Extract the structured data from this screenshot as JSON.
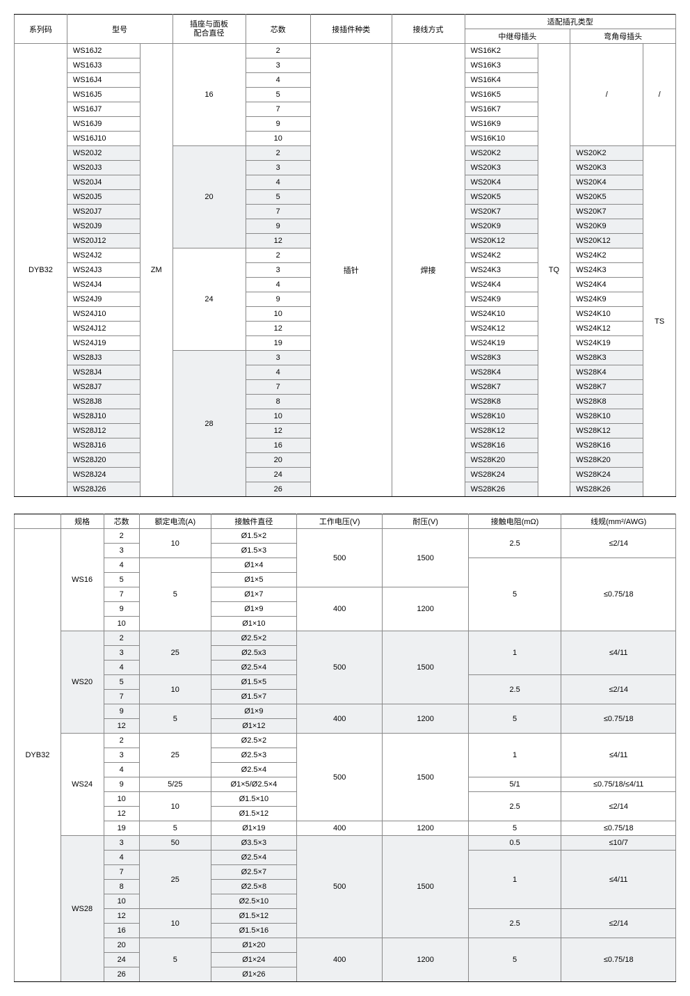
{
  "t1": {
    "headers": {
      "c0": "系列码",
      "c1": "型号",
      "c2": "插座与面板\n配合直径",
      "c3": "芯数",
      "c4": "接插件种类",
      "c5": "接线方式",
      "c6": "适配插孔类型",
      "c6a": "中继母插头",
      "c6b": "弯角母插头"
    },
    "series": "DYB32",
    "zm": "ZM",
    "tq": "TQ",
    "ts": "TS",
    "pin": "插针",
    "weld": "焊接",
    "slash": "/",
    "g16": {
      "d": "16",
      "rows": [
        {
          "m": "WS16J2",
          "c": "2",
          "k": "WS16K2"
        },
        {
          "m": "WS16J3",
          "c": "3",
          "k": "WS16K3"
        },
        {
          "m": "WS16J4",
          "c": "4",
          "k": "WS16K4"
        },
        {
          "m": "WS16J5",
          "c": "5",
          "k": "WS16K5"
        },
        {
          "m": "WS16J7",
          "c": "7",
          "k": "WS16K7"
        },
        {
          "m": "WS16J9",
          "c": "9",
          "k": "WS16K9"
        },
        {
          "m": "WS16J10",
          "c": "10",
          "k": "WS16K10"
        }
      ]
    },
    "g20": {
      "d": "20",
      "rows": [
        {
          "m": "WS20J2",
          "c": "2",
          "k": "WS20K2",
          "b": "WS20K2"
        },
        {
          "m": "WS20J3",
          "c": "3",
          "k": "WS20K3",
          "b": "WS20K3"
        },
        {
          "m": "WS20J4",
          "c": "4",
          "k": "WS20K4",
          "b": "WS20K4"
        },
        {
          "m": "WS20J5",
          "c": "5",
          "k": "WS20K5",
          "b": "WS20K5"
        },
        {
          "m": "WS20J7",
          "c": "7",
          "k": "WS20K7",
          "b": "WS20K7"
        },
        {
          "m": "WS20J9",
          "c": "9",
          "k": "WS20K9",
          "b": "WS20K9"
        },
        {
          "m": "WS20J12",
          "c": "12",
          "k": "WS20K12",
          "b": "WS20K12"
        }
      ]
    },
    "g24": {
      "d": "24",
      "rows": [
        {
          "m": "WS24J2",
          "c": "2",
          "k": "WS24K2",
          "b": "WS24K2"
        },
        {
          "m": "WS24J3",
          "c": "3",
          "k": "WS24K3",
          "b": "WS24K3"
        },
        {
          "m": "WS24J4",
          "c": "4",
          "k": "WS24K4",
          "b": "WS24K4"
        },
        {
          "m": "WS24J9",
          "c": "9",
          "k": "WS24K9",
          "b": "WS24K9"
        },
        {
          "m": "WS24J10",
          "c": "10",
          "k": "WS24K10",
          "b": "WS24K10"
        },
        {
          "m": "WS24J12",
          "c": "12",
          "k": "WS24K12",
          "b": "WS24K12"
        },
        {
          "m": "WS24J19",
          "c": "19",
          "k": "WS24K19",
          "b": "WS24K19"
        }
      ]
    },
    "g28": {
      "d": "28",
      "rows": [
        {
          "m": "WS28J3",
          "c": "3",
          "k": "WS28K3",
          "b": "WS28K3"
        },
        {
          "m": "WS28J4",
          "c": "4",
          "k": "WS28K4",
          "b": "WS28K4"
        },
        {
          "m": "WS28J7",
          "c": "7",
          "k": "WS28K7",
          "b": "WS28K7"
        },
        {
          "m": "WS28J8",
          "c": "8",
          "k": "WS28K8",
          "b": "WS28K8"
        },
        {
          "m": "WS28J10",
          "c": "10",
          "k": "WS28K10",
          "b": "WS28K10"
        },
        {
          "m": "WS28J12",
          "c": "12",
          "k": "WS28K12",
          "b": "WS28K12"
        },
        {
          "m": "WS28J16",
          "c": "16",
          "k": "WS28K16",
          "b": "WS28K16"
        },
        {
          "m": "WS28J20",
          "c": "20",
          "k": "WS28K20",
          "b": "WS28K20"
        },
        {
          "m": "WS28J24",
          "c": "24",
          "k": "WS28K24",
          "b": "WS28K24"
        },
        {
          "m": "WS28J26",
          "c": "26",
          "k": "WS28K26",
          "b": "WS28K26"
        }
      ]
    }
  },
  "t2": {
    "headers": {
      "c0": "",
      "c1": "规格",
      "c2": "芯数",
      "c3": "额定电流(A)",
      "c4": "接触件直径",
      "c5": "工作电压(V)",
      "c6": "耐压(V)",
      "c7": "接触电阻(mΩ)",
      "c8": "线规(mm²/AWG)"
    },
    "series": "DYB32",
    "ws16": {
      "name": "WS16",
      "rows": [
        {
          "c": "2",
          "cur": "10",
          "cd": "Ø1.5×2",
          "wv": "500",
          "tv": "1500",
          "r": "2.5",
          "g": "≤2/14"
        },
        {
          "c": "3",
          "cd": "Ø1.5×3"
        },
        {
          "c": "4",
          "cur": "5",
          "cd": "Ø1×4",
          "r": "5",
          "g": "≤0.75/18"
        },
        {
          "c": "5",
          "cd": "Ø1×5"
        },
        {
          "c": "7",
          "cd": "Ø1×7",
          "wv": "400",
          "tv": "1200"
        },
        {
          "c": "9",
          "cd": "Ø1×9"
        },
        {
          "c": "10",
          "cd": "Ø1×10"
        }
      ]
    },
    "ws20": {
      "name": "WS20",
      "rows": [
        {
          "c": "2",
          "cur": "25",
          "cd": "Ø2.5×2",
          "wv": "500",
          "tv": "1500",
          "r": "1",
          "g": "≤4/11"
        },
        {
          "c": "3",
          "cd": "Ø2.5x3"
        },
        {
          "c": "4",
          "cd": "Ø2.5×4"
        },
        {
          "c": "5",
          "cur": "10",
          "cd": "Ø1.5×5",
          "r": "2.5",
          "g": "≤2/14"
        },
        {
          "c": "7",
          "cd": "Ø1.5×7"
        },
        {
          "c": "9",
          "cur": "5",
          "cd": "Ø1×9",
          "wv": "400",
          "tv": "1200",
          "r": "5",
          "g": "≤0.75/18"
        },
        {
          "c": "12",
          "cd": "Ø1×12"
        }
      ]
    },
    "ws24": {
      "name": "WS24",
      "rows": [
        {
          "c": "2",
          "cur": "25",
          "cd": "Ø2.5×2",
          "wv": "500",
          "tv": "1500",
          "r": "1",
          "g": "≤4/11"
        },
        {
          "c": "3",
          "cd": "Ø2.5×3"
        },
        {
          "c": "4",
          "cd": "Ø2.5×4"
        },
        {
          "c": "9",
          "cur": "5/25",
          "cd": "Ø1×5/Ø2.5×4",
          "r": "5/1",
          "g": "≤0.75/18/≤4/11"
        },
        {
          "c": "10",
          "cur": "10",
          "cd": "Ø1.5×10",
          "r": "2.5",
          "g": "≤2/14"
        },
        {
          "c": "12",
          "cd": "Ø1.5×12"
        },
        {
          "c": "19",
          "cur": "5",
          "cd": "Ø1×19",
          "wv": "400",
          "tv": "1200",
          "r": "5",
          "g": "≤0.75/18"
        }
      ]
    },
    "ws28": {
      "name": "WS28",
      "rows": [
        {
          "c": "3",
          "cur": "50",
          "cd": "Ø3.5×3",
          "wv": "500",
          "tv": "1500",
          "r": "0.5",
          "g": "≤10/7"
        },
        {
          "c": "4",
          "cur": "25",
          "cd": "Ø2.5×4",
          "r": "1",
          "g": "≤4/11"
        },
        {
          "c": "7",
          "cd": "Ø2.5×7"
        },
        {
          "c": "8",
          "cd": "Ø2.5×8"
        },
        {
          "c": "10",
          "cd": "Ø2.5×10"
        },
        {
          "c": "12",
          "cur": "10",
          "cd": "Ø1.5×12",
          "r": "2.5",
          "g": "≤2/14"
        },
        {
          "c": "16",
          "cd": "Ø1.5×16"
        },
        {
          "c": "20",
          "cur": "5",
          "cd": "Ø1×20",
          "wv": "400",
          "tv": "1200",
          "r": "5",
          "g": "≤0.75/18"
        },
        {
          "c": "24",
          "cd": "Ø1×24"
        },
        {
          "c": "26",
          "cd": "Ø1×26"
        }
      ]
    }
  }
}
